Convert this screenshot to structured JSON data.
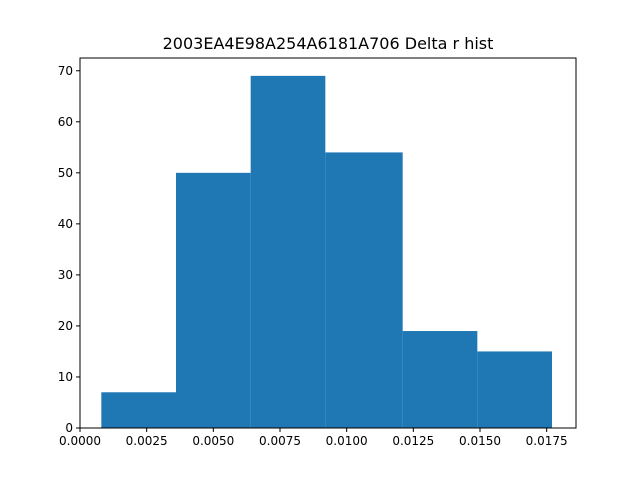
{
  "chart_data": {
    "type": "bar",
    "title": "2003EA4E98A254A6181A706 Delta r hist",
    "xlabel": "",
    "ylabel": "",
    "bin_edges": [
      0.0008,
      0.0036,
      0.0064,
      0.0092,
      0.0121,
      0.0149,
      0.0177
    ],
    "values": [
      7,
      50,
      69,
      54,
      19,
      15
    ],
    "xlim": [
      0.0,
      0.0186
    ],
    "ylim": [
      0,
      72.5
    ],
    "xticks": [
      0.0,
      0.0025,
      0.005,
      0.0075,
      0.01,
      0.0125,
      0.015,
      0.0175
    ],
    "xtick_labels": [
      "0.0000",
      "0.0025",
      "0.0050",
      "0.0075",
      "0.0100",
      "0.0125",
      "0.0150",
      "0.0175"
    ],
    "yticks": [
      0,
      10,
      20,
      30,
      40,
      50,
      60,
      70
    ],
    "ytick_labels": [
      "0",
      "10",
      "20",
      "30",
      "40",
      "50",
      "60",
      "70"
    ],
    "bar_color": "#1f77b4",
    "grid": false,
    "legend": "none"
  }
}
